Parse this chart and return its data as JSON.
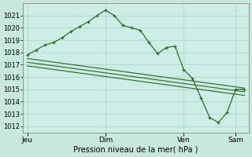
{
  "bg_color": "#cce8e0",
  "plot_bg": "#cceae2",
  "grid_color": "#aaccbb",
  "line_color": "#2d6b2d",
  "xlabel": "Pression niveau de la mer( hPa )",
  "ylim": [
    1011.5,
    1022.0
  ],
  "yticks": [
    1012,
    1013,
    1014,
    1015,
    1016,
    1017,
    1018,
    1019,
    1020,
    1021
  ],
  "xlim": [
    -0.5,
    25.5
  ],
  "xtick_labels": [
    "Jeu",
    "Dim",
    "Ven",
    "Sam"
  ],
  "xtick_positions": [
    0,
    9,
    18,
    24
  ],
  "series_main_x": [
    0,
    1,
    2,
    3,
    4,
    5,
    6,
    7,
    8,
    9,
    10,
    11,
    12,
    13,
    14,
    15,
    16,
    17,
    18,
    19,
    20,
    21,
    22,
    23,
    24,
    25
  ],
  "series_main_y": [
    1017.8,
    1018.2,
    1018.6,
    1018.8,
    1019.2,
    1019.7,
    1020.1,
    1020.5,
    1021.0,
    1021.45,
    1021.0,
    1020.2,
    1020.0,
    1019.8,
    1018.8,
    1017.9,
    1018.4,
    1018.5,
    1016.6,
    1015.9,
    1014.3,
    1012.7,
    1012.3,
    1013.1,
    1015.0,
    1015.0
  ],
  "series_line1_x": [
    0,
    25
  ],
  "series_line1_y": [
    1017.5,
    1015.1
  ],
  "series_line2_x": [
    0,
    25
  ],
  "series_line2_y": [
    1017.2,
    1014.8
  ],
  "series_line3_x": [
    0,
    25
  ],
  "series_line3_y": [
    1016.9,
    1014.5
  ]
}
